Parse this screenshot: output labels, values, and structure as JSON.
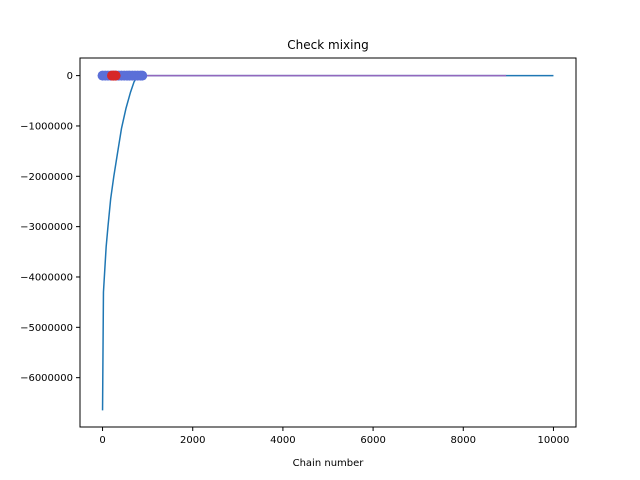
{
  "chart_data": {
    "type": "line",
    "title": "Check mixing",
    "xlabel": "Chain number",
    "ylabel": "",
    "xlim": [
      -500,
      10500
    ],
    "ylim": [
      -6980000,
      350000
    ],
    "xticks": [
      0,
      2000,
      4000,
      6000,
      8000,
      10000
    ],
    "xtick_labels": [
      "0",
      "2000",
      "4000",
      "6000",
      "8000",
      "10000"
    ],
    "yticks": [
      0,
      -1000000,
      -2000000,
      -3000000,
      -4000000,
      -5000000,
      -6000000
    ],
    "ytick_labels": [
      "0",
      "−1000000",
      "−2000000",
      "−3000000",
      "−4000000",
      "−5000000",
      "−6000000"
    ],
    "grid": false,
    "series": [
      {
        "color": "#1f77b4",
        "style": "line",
        "x": [
          0,
          20,
          50,
          80,
          120,
          180,
          250,
          330,
          420,
          520,
          620,
          700,
          750,
          800,
          850,
          900,
          1000,
          2000,
          4000,
          6000,
          8000,
          9000,
          10000
        ],
        "values": [
          -6650000,
          -4300000,
          -3850000,
          -3400000,
          -3000000,
          -2450000,
          -2000000,
          -1550000,
          -1050000,
          -650000,
          -330000,
          -120000,
          -50000,
          -15000,
          -5000,
          -2000,
          0,
          0,
          0,
          0,
          0,
          0,
          0
        ]
      },
      {
        "color": "#9467bd",
        "style": "line",
        "x": [
          0,
          1000,
          2000,
          4000,
          6000,
          8000,
          8950
        ],
        "values": [
          0,
          0,
          0,
          0,
          0,
          0,
          0
        ]
      },
      {
        "color": "#5b6fd8",
        "style": "markers",
        "x": [
          0,
          60,
          120,
          180,
          240,
          300,
          360,
          420,
          480,
          540,
          600,
          660,
          720,
          780,
          840,
          880
        ],
        "values": [
          0,
          0,
          0,
          0,
          0,
          0,
          0,
          0,
          0,
          0,
          0,
          0,
          0,
          0,
          0,
          0
        ]
      },
      {
        "color": "#d62728",
        "style": "markers",
        "x": [
          210,
          250,
          290
        ],
        "values": [
          0,
          0,
          0
        ]
      }
    ]
  }
}
